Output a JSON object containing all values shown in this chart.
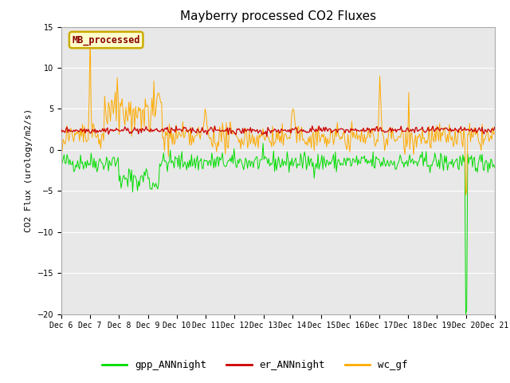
{
  "title": "Mayberry processed CO2 Fluxes",
  "ylabel": "CO2 Flux (urology/m2/s)",
  "ylim": [
    -20,
    15
  ],
  "yticks": [
    -20,
    -15,
    -10,
    -5,
    0,
    5,
    10,
    15
  ],
  "x_labels": [
    "Dec 6",
    "Dec 7",
    "Dec 8",
    "Dec 9",
    "Dec 10",
    "Dec 11",
    "Dec 12",
    "Dec 13",
    "Dec 14",
    "Dec 15",
    "Dec 16",
    "Dec 17",
    "Dec 18",
    "Dec 19",
    "Dec 20",
    "Dec 21"
  ],
  "fig_bg_color": "#ffffff",
  "plot_bg_color": "#e8e8e8",
  "gpp_color": "#00dd00",
  "er_color": "#cc0000",
  "wc_color": "#ffaa00",
  "grid_color": "#ffffff",
  "legend_labels": [
    "gpp_ANNnight",
    "er_ANNnight",
    "wc_gf"
  ],
  "box_label": "MB_processed",
  "box_facecolor": "#ffffcc",
  "box_edgecolor": "#ccaa00",
  "box_textcolor": "#880000",
  "n_points": 450,
  "seed": 42
}
